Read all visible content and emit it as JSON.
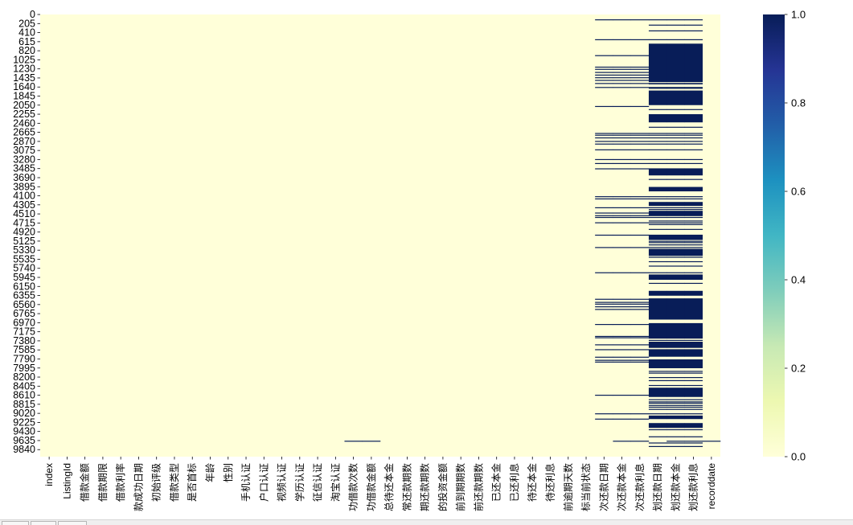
{
  "chart_data": {
    "type": "heatmap",
    "title": "",
    "xlabel": "",
    "ylabel": "",
    "colormap": "YlGnBu",
    "color_low": "#ffffd9",
    "color_high": "#081d58",
    "clim": [
      0.0,
      1.0
    ],
    "colorbar_ticks": [
      "0.0",
      "0.2",
      "0.4",
      "0.6",
      "0.8",
      "1.0"
    ],
    "columns": [
      "index",
      "ListingId",
      "借款金额",
      "借款期限",
      "借款利率",
      "款成功日期",
      "初始评级",
      "借款类型",
      "是否首标",
      "年龄",
      "性别",
      "手机认证",
      "户口认证",
      "视频认证",
      "学历认证",
      "征信认证",
      "淘宝认证",
      "功借款次数",
      "功借款金额",
      "总待还本金",
      "常还款期数",
      "期还款期数",
      "的投资金额",
      "前到期期数",
      "前还款期数",
      "已还本金",
      "已还利息",
      "待还本金",
      "待还利息",
      "前逾期天数",
      "标当前状态",
      "次还款日期",
      "次还款本金",
      "次还款利息",
      "划还款日期",
      "划还款本金",
      "划还款利息",
      "recorddate"
    ],
    "row_tick_labels": [
      "0",
      "205",
      "410",
      "615",
      "820",
      "1025",
      "1230",
      "1435",
      "1640",
      "1845",
      "2050",
      "2255",
      "2460",
      "2665",
      "2870",
      "3075",
      "3280",
      "3485",
      "3690",
      "3895",
      "4100",
      "4305",
      "4510",
      "4715",
      "4920",
      "5125",
      "5330",
      "5535",
      "5740",
      "5945",
      "6150",
      "6355",
      "6560",
      "6765",
      "6970",
      "7175",
      "7380",
      "7585",
      "7790",
      "7995",
      "8200",
      "8405",
      "8610",
      "8815",
      "9020",
      "9225",
      "9430",
      "9635",
      "9840"
    ],
    "row_count": 10000,
    "row_step": 205,
    "missing_segments": [
      {
        "columns": [
          "功借款次数",
          "功借款金额"
        ],
        "rows": [
          [
            9640,
            9660
          ]
        ]
      },
      {
        "columns": [
          "次还款本金",
          "次还款利息",
          "划还款本金",
          "划还款利息",
          "recorddate"
        ],
        "rows": [
          [
            9640,
            9660
          ]
        ]
      },
      {
        "columns": [
          "次还款日期",
          "次还款本金",
          "次还款利息"
        ],
        "rows": [
          [
            110,
            120
          ],
          [
            560,
            580
          ],
          [
            920,
            925
          ],
          [
            1180,
            1200
          ],
          [
            1230,
            1240
          ],
          [
            1300,
            1310
          ],
          [
            1360,
            1370
          ],
          [
            1420,
            1430
          ],
          [
            1480,
            1490
          ],
          [
            1550,
            1560
          ],
          [
            1640,
            1650
          ],
          [
            2070,
            2080
          ],
          [
            2680,
            2700
          ],
          [
            2720,
            2730
          ],
          [
            2780,
            2790
          ],
          [
            2860,
            2880
          ],
          [
            2920,
            2935
          ],
          [
            3050,
            3060
          ],
          [
            3270,
            3290
          ],
          [
            3360,
            3380
          ],
          [
            3480,
            3490
          ],
          [
            4110,
            4120
          ],
          [
            4160,
            4170
          ],
          [
            4360,
            4380
          ],
          [
            4480,
            4500
          ],
          [
            4540,
            4560
          ],
          [
            4580,
            4590
          ],
          [
            4700,
            4710
          ],
          [
            4980,
            4990
          ],
          [
            5260,
            5270
          ],
          [
            5830,
            5840
          ],
          [
            6430,
            6440
          ],
          [
            6500,
            6510
          ],
          [
            6540,
            6560
          ],
          [
            6600,
            6610
          ],
          [
            6660,
            6670
          ],
          [
            7000,
            7020
          ],
          [
            7270,
            7280
          ],
          [
            7300,
            7310
          ],
          [
            7460,
            7470
          ],
          [
            7570,
            7580
          ],
          [
            7740,
            7750
          ],
          [
            7810,
            7830
          ],
          [
            7850,
            7860
          ],
          [
            8600,
            8620
          ],
          [
            9020,
            9040
          ],
          [
            9140,
            9150
          ]
        ]
      },
      {
        "columns": [
          "划还款日期",
          "划还款本金",
          "划还款利息"
        ],
        "rows": [
          [
            110,
            120
          ],
          [
            230,
            240
          ],
          [
            360,
            380
          ],
          [
            560,
            580
          ],
          [
            660,
            1530
          ],
          [
            1550,
            1580
          ],
          [
            1640,
            1680
          ],
          [
            1720,
            2050
          ],
          [
            2140,
            2160
          ],
          [
            2255,
            2440
          ],
          [
            2540,
            2560
          ],
          [
            2680,
            2700
          ],
          [
            2720,
            2730
          ],
          [
            2780,
            2790
          ],
          [
            2860,
            2880
          ],
          [
            2920,
            2935
          ],
          [
            3050,
            3060
          ],
          [
            3270,
            3290
          ],
          [
            3360,
            3380
          ],
          [
            3480,
            3640
          ],
          [
            3720,
            3735
          ],
          [
            3900,
            4000
          ],
          [
            4110,
            4120
          ],
          [
            4160,
            4170
          ],
          [
            4240,
            4330
          ],
          [
            4360,
            4380
          ],
          [
            4400,
            4420
          ],
          [
            4440,
            4560
          ],
          [
            4580,
            4590
          ],
          [
            4660,
            4680
          ],
          [
            4700,
            4710
          ],
          [
            4740,
            4750
          ],
          [
            4850,
            4870
          ],
          [
            4980,
            5100
          ],
          [
            5120,
            5130
          ],
          [
            5150,
            5170
          ],
          [
            5200,
            5220
          ],
          [
            5260,
            5270
          ],
          [
            5300,
            5460
          ],
          [
            5480,
            5490
          ],
          [
            5580,
            5600
          ],
          [
            5680,
            5700
          ],
          [
            5830,
            5840
          ],
          [
            5880,
            6000
          ],
          [
            6070,
            6080
          ],
          [
            6250,
            6360
          ],
          [
            6420,
            6900
          ],
          [
            6980,
            7330
          ],
          [
            7360,
            7380
          ],
          [
            7400,
            7540
          ],
          [
            7570,
            7740
          ],
          [
            7800,
            8000
          ],
          [
            8060,
            8070
          ],
          [
            8100,
            8110
          ],
          [
            8200,
            8210
          ],
          [
            8270,
            8290
          ],
          [
            8380,
            8390
          ],
          [
            8440,
            8650
          ],
          [
            8700,
            8710
          ],
          [
            8750,
            8760
          ],
          [
            8780,
            8800
          ],
          [
            8830,
            8840
          ],
          [
            8870,
            8880
          ],
          [
            8920,
            8930
          ],
          [
            9020,
            9040
          ],
          [
            9070,
            9150
          ],
          [
            9240,
            9350
          ],
          [
            9380,
            9400
          ],
          [
            9540,
            9560
          ],
          [
            9680,
            9700
          ],
          [
            9760,
            9780
          ]
        ]
      }
    ]
  }
}
